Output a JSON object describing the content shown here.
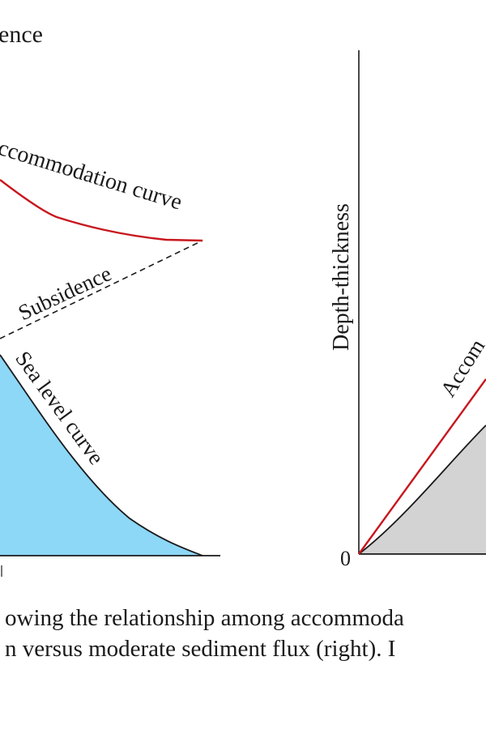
{
  "left_panel": {
    "title_fragment": "ence",
    "accommodation_label": "ccommodation curve",
    "subsidence_label": "Subsidence",
    "sea_level_label": "Sea level curve",
    "colors": {
      "accommodation": "#c8171e",
      "sea_fill": "#8dd7f7",
      "line": "#1a1a1a"
    }
  },
  "right_panel": {
    "y_axis_label": "Depth-thickness",
    "origin_label": "0",
    "accommodation_label_fragment": "Accom",
    "colors": {
      "accommodation": "#c8171e",
      "sediment_fill": "#d3d3d3",
      "line": "#1a1a1a"
    }
  },
  "caption": {
    "line1": "owing the relationship among accommoda",
    "line2": "n versus moderate sediment flux (right). I"
  }
}
